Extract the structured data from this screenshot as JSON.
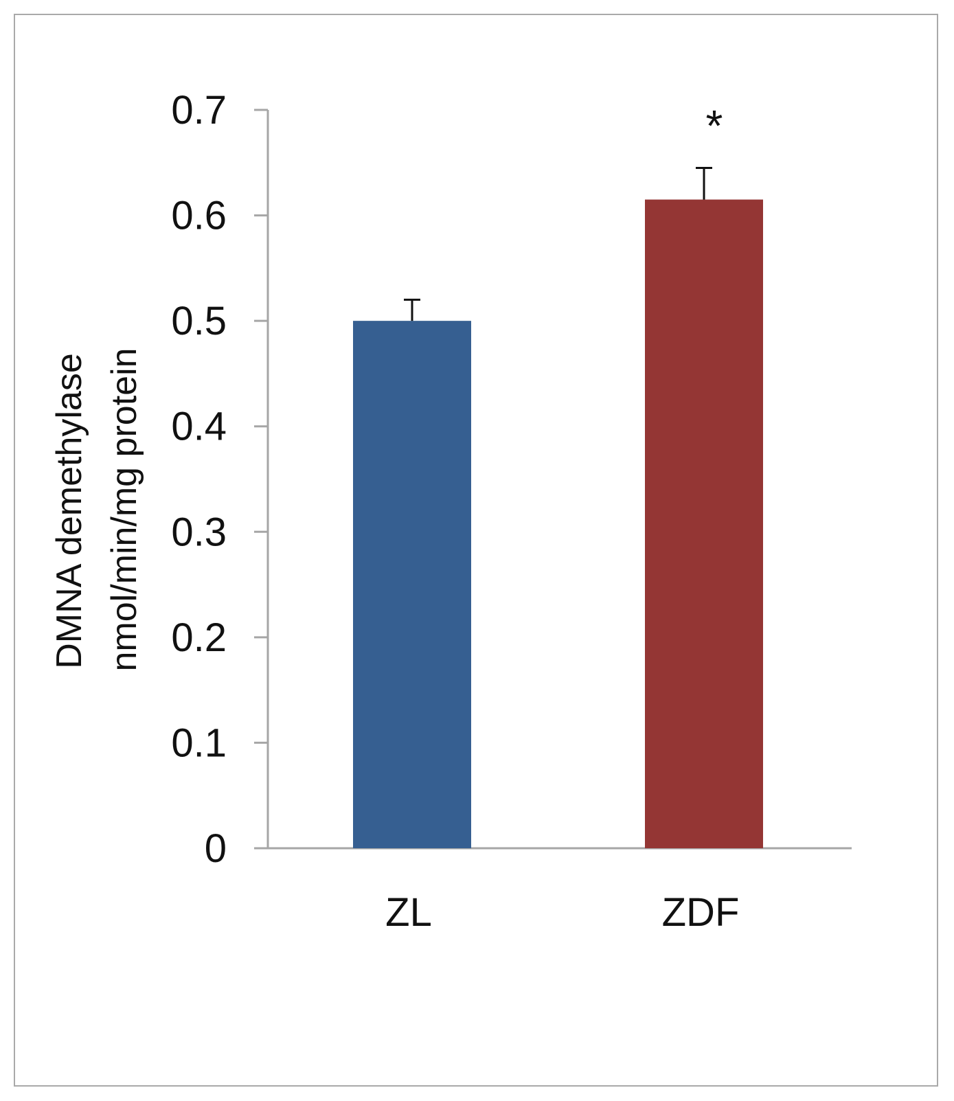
{
  "chart_data": {
    "type": "bar",
    "categories": [
      "ZL",
      "ZDF"
    ],
    "values": [
      0.5,
      0.615
    ],
    "error_bars": [
      0.02,
      0.03
    ],
    "annotations": [
      "",
      "*"
    ],
    "colors": [
      "#365f91",
      "#943634"
    ],
    "ylabel_lines": [
      "DMNA demethylase",
      "nmol/min/mg protein"
    ],
    "ylim": [
      0,
      0.7
    ],
    "yticks": [
      "0",
      "0.1",
      "0.2",
      "0.3",
      "0.4",
      "0.5",
      "0.6",
      "0.7"
    ],
    "legend": "none",
    "grid": false
  }
}
